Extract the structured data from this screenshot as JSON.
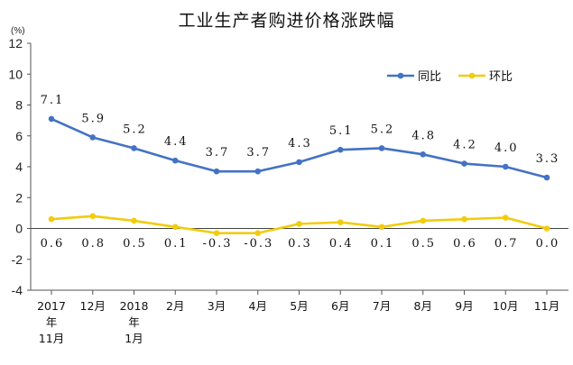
{
  "chart_data": {
    "type": "line",
    "title": "工业生产者购进价格涨跌幅",
    "unit_label": "(%)",
    "ylim": [
      -4,
      12
    ],
    "yticks": [
      -4,
      -2,
      0,
      2,
      4,
      6,
      8,
      10,
      12
    ],
    "grid": false,
    "legend_position": "top-right",
    "categories": [
      [
        "2017",
        "年",
        "11月"
      ],
      [
        "12月"
      ],
      [
        "2018",
        "年",
        "1月"
      ],
      [
        "2月"
      ],
      [
        "3月"
      ],
      [
        "4月"
      ],
      [
        "5月"
      ],
      [
        "6月"
      ],
      [
        "7月"
      ],
      [
        "8月"
      ],
      [
        "9月"
      ],
      [
        "10月"
      ],
      [
        "11月"
      ]
    ],
    "series": [
      {
        "name": "同比",
        "color": "#4472C4",
        "values": [
          7.1,
          5.9,
          5.2,
          4.4,
          3.7,
          3.7,
          4.3,
          5.1,
          5.2,
          4.8,
          4.2,
          4.0,
          3.3
        ],
        "labels": [
          "7.1",
          "5.9",
          "5.2",
          "4.4",
          "3.7",
          "3.7",
          "4.3",
          "5.1",
          "5.2",
          "4.8",
          "4.2",
          "4.0",
          "3.3"
        ]
      },
      {
        "name": "环比",
        "color": "#F2CC0C",
        "values": [
          0.6,
          0.8,
          0.5,
          0.1,
          -0.3,
          -0.3,
          0.3,
          0.4,
          0.1,
          0.5,
          0.6,
          0.7,
          0.0
        ],
        "labels": [
          "0.6",
          "0.8",
          "0.5",
          "0.1",
          "-0.3",
          "-0.3",
          "0.3",
          "0.4",
          "0.1",
          "0.5",
          "0.6",
          "0.7",
          "0.0"
        ]
      }
    ]
  }
}
